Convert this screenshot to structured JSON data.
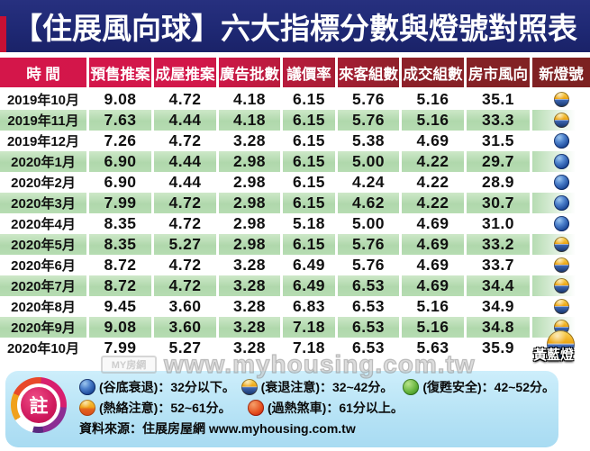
{
  "title": "【住展風向球】六大指標分數與燈號對照表",
  "chart_data": {
    "type": "table",
    "title": "【住展風向球】六大指標分數與燈號對照表",
    "columns": [
      "時 間",
      "預售推案",
      "成屋推案",
      "廣告批數",
      "議價率",
      "來客組數",
      "成交組數",
      "房市風向",
      "新燈號"
    ],
    "rows": [
      {
        "time": "2019年10月",
        "values": [
          "9.08",
          "4.72",
          "4.18",
          "6.15",
          "5.76",
          "5.16",
          "35.1"
        ],
        "light": "yellow-blue",
        "green": false
      },
      {
        "time": "2019年11月",
        "values": [
          "7.63",
          "4.44",
          "4.18",
          "6.15",
          "5.76",
          "5.16",
          "33.3"
        ],
        "light": "yellow-blue",
        "green": true
      },
      {
        "time": "2019年12月",
        "values": [
          "7.26",
          "4.72",
          "3.28",
          "6.15",
          "5.38",
          "4.69",
          "31.5"
        ],
        "light": "blue",
        "green": false
      },
      {
        "time": "2020年1月",
        "values": [
          "6.90",
          "4.44",
          "2.98",
          "6.15",
          "5.00",
          "4.22",
          "29.7"
        ],
        "light": "blue",
        "green": true
      },
      {
        "time": "2020年2月",
        "values": [
          "6.90",
          "4.44",
          "2.98",
          "6.15",
          "4.24",
          "4.22",
          "28.9"
        ],
        "light": "blue",
        "green": false
      },
      {
        "time": "2020年3月",
        "values": [
          "7.99",
          "4.72",
          "2.98",
          "6.15",
          "4.62",
          "4.22",
          "30.7"
        ],
        "light": "blue",
        "green": true
      },
      {
        "time": "2020年4月",
        "values": [
          "8.35",
          "4.72",
          "2.98",
          "5.18",
          "5.00",
          "4.69",
          "31.0"
        ],
        "light": "blue",
        "green": false
      },
      {
        "time": "2020年5月",
        "values": [
          "8.35",
          "5.27",
          "2.98",
          "6.15",
          "5.76",
          "4.69",
          "33.2"
        ],
        "light": "yellow-blue",
        "green": true
      },
      {
        "time": "2020年6月",
        "values": [
          "8.72",
          "4.72",
          "3.28",
          "6.49",
          "5.76",
          "4.69",
          "33.7"
        ],
        "light": "yellow-blue",
        "green": false
      },
      {
        "time": "2020年7月",
        "values": [
          "8.72",
          "4.72",
          "3.28",
          "6.49",
          "6.53",
          "4.69",
          "34.4"
        ],
        "light": "yellow-blue",
        "green": true
      },
      {
        "time": "2020年8月",
        "values": [
          "9.45",
          "3.60",
          "3.28",
          "6.83",
          "6.53",
          "5.16",
          "34.9"
        ],
        "light": "yellow-blue",
        "green": false
      },
      {
        "time": "2020年9月",
        "values": [
          "9.08",
          "3.60",
          "3.28",
          "7.18",
          "6.53",
          "5.16",
          "34.8"
        ],
        "light": "yellow-blue",
        "green": true
      },
      {
        "time": "2020年10月",
        "values": [
          "7.99",
          "5.27",
          "3.28",
          "7.18",
          "6.53",
          "5.63",
          "35.9"
        ],
        "light": "yellow-blue",
        "green": false,
        "light_label": "黃藍燈"
      }
    ]
  },
  "current_light_label": "黃藍燈",
  "legend": {
    "badge": "註",
    "items": [
      {
        "light": "blue",
        "label": "(谷底衰退)：32分以下。"
      },
      {
        "light": "yellow-blue",
        "label": "(衰退注意)：32~42分。"
      },
      {
        "light": "green",
        "label": "(復甦安全)：42~52分。"
      },
      {
        "light": "orange",
        "label": "(熱絡注意)：52~61分。"
      },
      {
        "light": "red",
        "label": "(過熱煞車)：61分以上。"
      }
    ],
    "source": "資料來源：住展房屋網 www.myhousing.com.tw"
  },
  "watermark": {
    "logo": "MY房網",
    "text": "www.myhousing.com.tw"
  },
  "colors": {
    "title_bg": "#1e2873",
    "header_red": "#d4164a",
    "header_maroon": "#7c2121",
    "row_green": "#b0d8ac",
    "legend_bg": "#b5e2f5",
    "light_blue": "#1d4a9a",
    "light_yellow": "#eda311",
    "light_green": "#62b23a",
    "light_orange": "#f0a61c",
    "light_red": "#e4501f"
  }
}
